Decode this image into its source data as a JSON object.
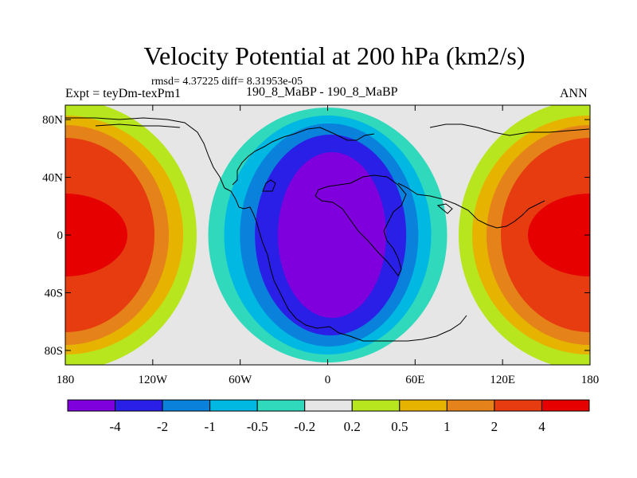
{
  "chart_data": {
    "type": "heatmap",
    "title": "Velocity Potential at 200 hPa (km2/s)",
    "stats_label": "rmsd= 4.37225 diff= 8.31953e-05",
    "left_label": "Expt = teyDm-texPm1",
    "center_label": "190_8_MaBP - 190_8_MaBP",
    "right_label": "ANN",
    "units": "km2/s",
    "xlim": [
      -180,
      180
    ],
    "ylim": [
      -90,
      90
    ],
    "x_ticks": [
      {
        "value": -180,
        "label": "180"
      },
      {
        "value": -120,
        "label": "120W"
      },
      {
        "value": -60,
        "label": "60W"
      },
      {
        "value": 0,
        "label": "0"
      },
      {
        "value": 60,
        "label": "60E"
      },
      {
        "value": 120,
        "label": "120E"
      },
      {
        "value": 180,
        "label": "180"
      }
    ],
    "y_ticks": [
      {
        "value": 80,
        "label": "80N"
      },
      {
        "value": 40,
        "label": "40N"
      },
      {
        "value": 0,
        "label": "0"
      },
      {
        "value": -40,
        "label": "40S"
      },
      {
        "value": -80,
        "label": "80S"
      }
    ],
    "contour_levels": [
      "-4",
      "-2",
      "-1",
      "-0.5",
      "-0.2",
      "0.2",
      "0.5",
      "1",
      "2",
      "4"
    ],
    "colorbar_colors": [
      "#7f00dc",
      "#2a1fe6",
      "#0a82dc",
      "#00b8e2",
      "#30d8bc",
      "#e6e6e6",
      "#b8e61e",
      "#e6b400",
      "#e6821a",
      "#e63c10",
      "#e60000"
    ],
    "field_description": "wave-number-1 pattern: negative (divergent) centre near 0 longitude, positive centre near 180",
    "negative_center": {
      "lon": 0,
      "lat": 0,
      "min_value": -5
    },
    "positive_center": {
      "lon": 180,
      "lat": 0,
      "max_value": 5
    }
  }
}
